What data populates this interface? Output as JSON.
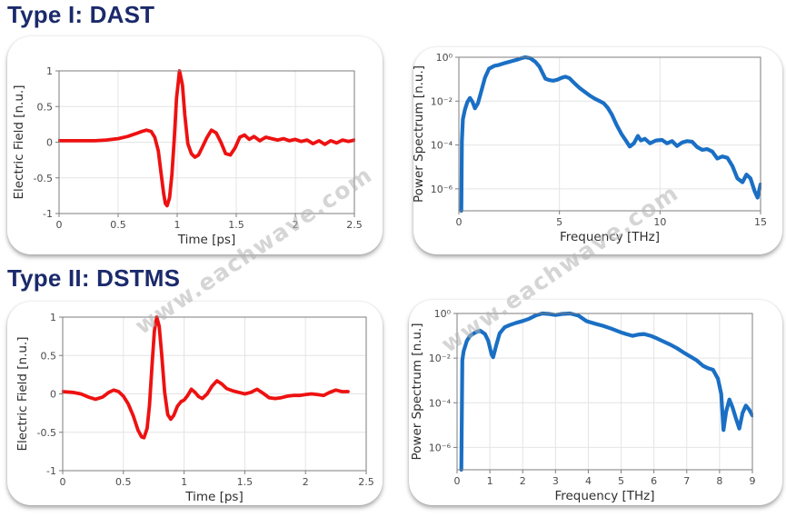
{
  "theme": {
    "heading_color": "#1b2a6b",
    "watermark_color": "#b3b3b3",
    "red_trace": "#ee1111",
    "blue_trace": "#1a6fc4"
  },
  "sections": [
    {
      "heading": "Type I: DAST"
    },
    {
      "heading": "Type II: DSTMS"
    }
  ],
  "watermark": {
    "text": "www.eachwave.com",
    "color": "#b3b3b3"
  },
  "chart_data": [
    {
      "name": "dast-time-waveform",
      "type": "line",
      "color": "#ee1111",
      "line_width": 3.8,
      "xlabel": "Time [ps]",
      "ylabel": "Electric Field [n.u.]",
      "xlim": [
        0,
        2.5
      ],
      "ylim": [
        -1,
        1
      ],
      "yscale": "linear",
      "grid": true,
      "legend": "none",
      "margins": {
        "l": 57,
        "t": 38,
        "r": 31,
        "b": 45
      },
      "xticks": [
        0,
        0.5,
        1,
        1.5,
        2,
        2.5
      ],
      "xtick_labels": [
        "0",
        "0.5",
        "1",
        "1.5",
        "2",
        "2.5"
      ],
      "yticks": [
        -1,
        -0.5,
        0,
        0.5,
        1
      ],
      "ytick_labels": [
        "-1",
        "-0.5",
        "0",
        "0.5",
        "1"
      ],
      "x": [
        0,
        0.1,
        0.2,
        0.3,
        0.4,
        0.5,
        0.58,
        0.65,
        0.7,
        0.74,
        0.78,
        0.81,
        0.84,
        0.865,
        0.885,
        0.9,
        0.915,
        0.935,
        0.955,
        0.975,
        0.995,
        1.02,
        1.045,
        1.065,
        1.09,
        1.12,
        1.15,
        1.18,
        1.21,
        1.25,
        1.29,
        1.33,
        1.37,
        1.41,
        1.45,
        1.49,
        1.53,
        1.57,
        1.61,
        1.65,
        1.7,
        1.75,
        1.8,
        1.85,
        1.9,
        1.95,
        2.0,
        2.05,
        2.1,
        2.15,
        2.2,
        2.25,
        2.3,
        2.35,
        2.4,
        2.45,
        2.5
      ],
      "y": [
        0.02,
        0.02,
        0.02,
        0.02,
        0.03,
        0.05,
        0.08,
        0.12,
        0.15,
        0.17,
        0.15,
        0.07,
        -0.12,
        -0.45,
        -0.72,
        -0.86,
        -0.89,
        -0.78,
        -0.45,
        0.05,
        0.62,
        1.0,
        0.8,
        0.38,
        -0.02,
        -0.16,
        -0.21,
        -0.18,
        -0.08,
        0.06,
        0.17,
        0.13,
        0.0,
        -0.16,
        -0.18,
        -0.08,
        0.07,
        0.1,
        0.04,
        0.08,
        0.02,
        0.07,
        0.05,
        0.03,
        0.05,
        0.02,
        0.04,
        0.01,
        0.03,
        -0.02,
        0.02,
        -0.03,
        0.02,
        -0.01,
        0.03,
        0.01,
        0.03
      ]
    },
    {
      "name": "dast-power-spectrum",
      "type": "line",
      "color": "#1a6fc4",
      "line_width": 4.2,
      "xlabel": "Frequency [THz]",
      "ylabel": "Power Spectrum [n.u.]",
      "xlim": [
        0,
        15
      ],
      "ylim": [
        1e-07,
        1
      ],
      "yscale": "log",
      "grid": true,
      "legend": "none",
      "margins": {
        "l": 50,
        "t": 11,
        "r": 24,
        "b": 48
      },
      "xticks": [
        0,
        5,
        10,
        15
      ],
      "xtick_labels": [
        "0",
        "5",
        "10",
        "15"
      ],
      "yticks": [
        1,
        0.01,
        0.0001,
        1e-06
      ],
      "ytick_labels": [
        "10⁰",
        "10⁻²",
        "10⁻⁴",
        "10⁻⁶"
      ],
      "x": [
        0.12,
        0.15,
        0.2,
        0.3,
        0.42,
        0.55,
        0.68,
        0.8,
        0.95,
        1.1,
        1.3,
        1.5,
        1.75,
        2.0,
        2.3,
        2.6,
        2.9,
        3.1,
        3.3,
        3.55,
        3.8,
        4.0,
        4.15,
        4.3,
        4.5,
        4.7,
        4.9,
        5.1,
        5.3,
        5.5,
        5.75,
        6.0,
        6.25,
        6.5,
        6.75,
        7.0,
        7.2,
        7.4,
        7.6,
        7.85,
        8.1,
        8.3,
        8.5,
        8.7,
        8.9,
        9.05,
        9.25,
        9.5,
        9.8,
        10.1,
        10.35,
        10.6,
        10.85,
        11.1,
        11.35,
        11.6,
        11.85,
        12.1,
        12.35,
        12.6,
        12.85,
        13.1,
        13.35,
        13.6,
        13.85,
        14.1,
        14.3,
        14.5,
        14.7,
        14.85,
        15.0
      ],
      "y": [
        1e-07,
        0.00015,
        0.0015,
        0.004,
        0.009,
        0.014,
        0.009,
        0.0047,
        0.008,
        0.025,
        0.12,
        0.3,
        0.4,
        0.45,
        0.55,
        0.65,
        0.78,
        0.9,
        1.0,
        0.9,
        0.62,
        0.38,
        0.2,
        0.105,
        0.09,
        0.085,
        0.095,
        0.115,
        0.13,
        0.11,
        0.065,
        0.04,
        0.027,
        0.018,
        0.013,
        0.01,
        0.008,
        0.005,
        0.0025,
        0.0008,
        0.0003,
        0.00016,
        8.5e-05,
        0.00012,
        0.00026,
        0.00016,
        0.00019,
        0.00012,
        0.00016,
        0.00017,
        0.00012,
        0.00015,
        9e-05,
        0.00013,
        0.00015,
        0.00014,
        8e-05,
        6e-05,
        6.5e-05,
        5e-05,
        2.4e-05,
        3e-05,
        2.6e-05,
        1.1e-05,
        3e-06,
        2e-06,
        4.5e-06,
        3e-06,
        8e-07,
        4e-07,
        1.6e-06
      ]
    },
    {
      "name": "dstms-time-waveform",
      "type": "line",
      "color": "#ee1111",
      "line_width": 3.8,
      "xlabel": "Time [ps]",
      "ylabel": "Electric Field [n.u.]",
      "xlim": [
        0,
        2.5
      ],
      "ylim": [
        -1,
        1
      ],
      "yscale": "linear",
      "grid": true,
      "legend": "none",
      "margins": {
        "l": 61,
        "t": 17,
        "r": 18,
        "b": 38
      },
      "xticks": [
        0,
        0.5,
        1,
        1.5,
        2,
        2.5
      ],
      "xtick_labels": [
        "0",
        "0.5",
        "1",
        "1.5",
        "2",
        "2.5"
      ],
      "yticks": [
        -1,
        -0.5,
        0,
        0.5,
        1
      ],
      "ytick_labels": [
        "-1",
        "-0.5",
        "0",
        "0.5",
        "1"
      ],
      "x": [
        0,
        0.08,
        0.15,
        0.21,
        0.27,
        0.33,
        0.38,
        0.42,
        0.46,
        0.5,
        0.54,
        0.58,
        0.62,
        0.65,
        0.67,
        0.695,
        0.715,
        0.735,
        0.755,
        0.775,
        0.795,
        0.815,
        0.84,
        0.865,
        0.89,
        0.915,
        0.945,
        0.975,
        1.0,
        1.03,
        1.06,
        1.09,
        1.12,
        1.15,
        1.19,
        1.23,
        1.27,
        1.31,
        1.35,
        1.4,
        1.45,
        1.5,
        1.55,
        1.6,
        1.65,
        1.7,
        1.75,
        1.8,
        1.85,
        1.9,
        1.95,
        2.0,
        2.05,
        2.1,
        2.15,
        2.2,
        2.25,
        2.3,
        2.35
      ],
      "y": [
        0.03,
        0.02,
        0.0,
        -0.04,
        -0.07,
        -0.04,
        0.02,
        0.05,
        0.03,
        -0.03,
        -0.13,
        -0.28,
        -0.47,
        -0.56,
        -0.57,
        -0.45,
        -0.15,
        0.35,
        0.82,
        1.0,
        0.88,
        0.52,
        0.02,
        -0.27,
        -0.33,
        -0.28,
        -0.16,
        -0.1,
        -0.08,
        -0.02,
        0.06,
        0.02,
        -0.035,
        -0.06,
        0.0,
        0.1,
        0.17,
        0.13,
        0.07,
        0.04,
        0.02,
        0.0,
        0.02,
        0.06,
        0.01,
        -0.05,
        -0.06,
        -0.05,
        -0.03,
        -0.02,
        -0.02,
        -0.01,
        0.0,
        -0.01,
        -0.02,
        0.02,
        0.05,
        0.03,
        0.03
      ]
    },
    {
      "name": "dstms-power-spectrum",
      "type": "line",
      "color": "#1a6fc4",
      "line_width": 4.2,
      "xlabel": "Frequency [THz]",
      "ylabel": "Power Spectrum [n.u.]",
      "xlim": [
        0,
        9
      ],
      "ylim": [
        1e-07,
        1
      ],
      "yscale": "log",
      "grid": true,
      "legend": "none",
      "margins": {
        "l": 53,
        "t": 15,
        "r": 33,
        "b": 39
      },
      "xticks": [
        0,
        1,
        2,
        3,
        4,
        5,
        6,
        7,
        8,
        9
      ],
      "xtick_labels": [
        "0",
        "1",
        "2",
        "3",
        "4",
        "5",
        "6",
        "7",
        "8",
        "9"
      ],
      "yticks": [
        1,
        0.01,
        0.0001,
        1e-06
      ],
      "ytick_labels": [
        "10⁰",
        "10⁻²",
        "10⁻⁴",
        "10⁻⁶"
      ],
      "x": [
        0.13,
        0.16,
        0.2,
        0.3,
        0.4,
        0.55,
        0.7,
        0.85,
        0.95,
        1.05,
        1.1,
        1.2,
        1.3,
        1.45,
        1.6,
        1.8,
        2.0,
        2.2,
        2.4,
        2.6,
        2.8,
        3.0,
        3.2,
        3.45,
        3.7,
        3.95,
        4.2,
        4.45,
        4.7,
        4.95,
        5.15,
        5.35,
        5.55,
        5.7,
        5.9,
        6.1,
        6.3,
        6.5,
        6.7,
        6.9,
        7.1,
        7.3,
        7.5,
        7.65,
        7.8,
        7.95,
        8.05,
        8.12,
        8.2,
        8.3,
        8.4,
        8.5,
        8.6,
        8.7,
        8.8,
        8.9,
        9.0
      ],
      "y": [
        1e-07,
        0.008,
        0.02,
        0.06,
        0.1,
        0.14,
        0.17,
        0.12,
        0.06,
        0.015,
        0.011,
        0.04,
        0.13,
        0.24,
        0.3,
        0.38,
        0.46,
        0.58,
        0.82,
        1.0,
        0.95,
        0.85,
        0.95,
        1.0,
        0.8,
        0.45,
        0.35,
        0.28,
        0.21,
        0.15,
        0.12,
        0.1,
        0.115,
        0.12,
        0.1,
        0.075,
        0.055,
        0.04,
        0.028,
        0.018,
        0.012,
        0.008,
        0.0045,
        0.0035,
        0.003,
        0.0012,
        0.00025,
        6e-06,
        4e-05,
        0.00014,
        6e-05,
        2e-05,
        7e-06,
        3.5e-05,
        7.5e-05,
        5e-05,
        2.7e-05
      ]
    }
  ]
}
